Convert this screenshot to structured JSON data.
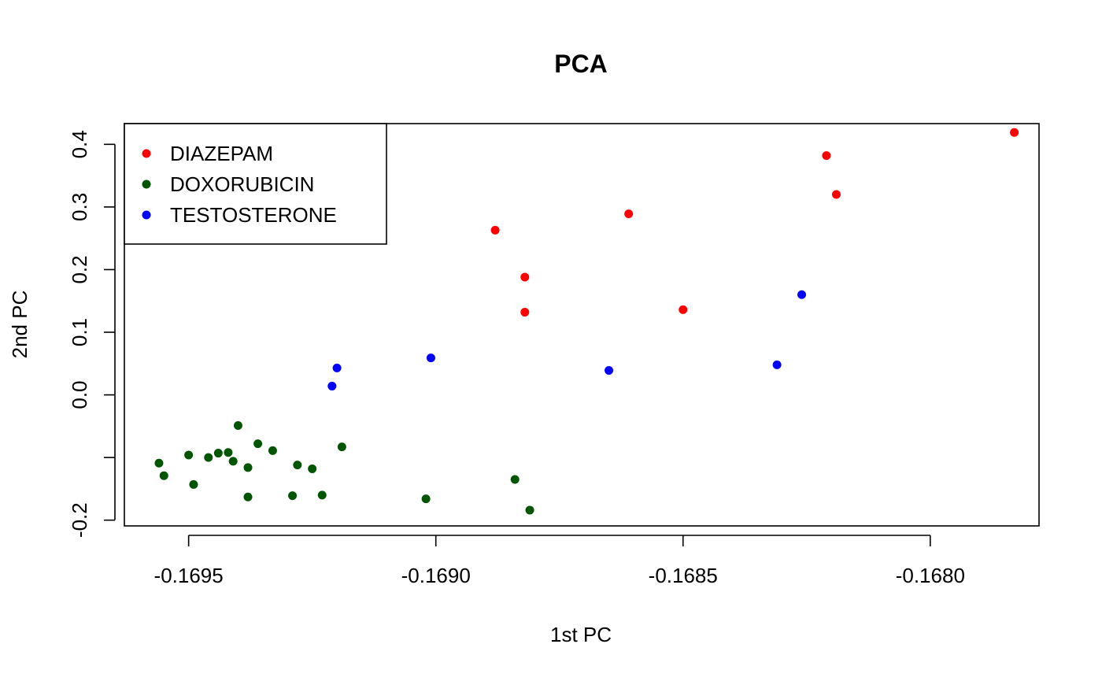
{
  "chart_data": {
    "type": "scatter",
    "title": "PCA",
    "xlabel": "1st PC",
    "ylabel": "2nd PC",
    "xlim": [
      -0.16963,
      -0.16778
    ],
    "ylim": [
      -0.2092,
      0.4331
    ],
    "x_ticks": [
      -0.1695,
      -0.169,
      -0.1685,
      -0.168
    ],
    "x_tick_labels": [
      "-0.1695",
      "-0.1690",
      "-0.1685",
      "-0.1680"
    ],
    "y_ticks": [
      -0.2,
      -0.1,
      0.0,
      0.1,
      0.2,
      0.3,
      0.4
    ],
    "y_tick_labels": [
      "-0.2",
      "",
      "0.0",
      "0.1",
      "0.2",
      "0.3",
      "0.4"
    ],
    "grid": false,
    "legend_position": "top-left",
    "series": [
      {
        "name": "DIAZEPAM",
        "color": "#ff0000",
        "points": [
          [
            -0.16888,
            0.263
          ],
          [
            -0.16882,
            0.188
          ],
          [
            -0.16882,
            0.132
          ],
          [
            -0.16861,
            0.289
          ],
          [
            -0.1685,
            0.136
          ],
          [
            -0.16821,
            0.382
          ],
          [
            -0.16819,
            0.32
          ],
          [
            -0.16783,
            0.419
          ]
        ]
      },
      {
        "name": "DOXORUBICIN",
        "color": "#005500",
        "points": [
          [
            -0.16956,
            -0.109
          ],
          [
            -0.16955,
            -0.129
          ],
          [
            -0.1695,
            -0.096
          ],
          [
            -0.16949,
            -0.143
          ],
          [
            -0.16946,
            -0.1
          ],
          [
            -0.16944,
            -0.093
          ],
          [
            -0.16942,
            -0.092
          ],
          [
            -0.16941,
            -0.106
          ],
          [
            -0.1694,
            -0.049
          ],
          [
            -0.16938,
            -0.116
          ],
          [
            -0.16938,
            -0.163
          ],
          [
            -0.16936,
            -0.078
          ],
          [
            -0.16933,
            -0.089
          ],
          [
            -0.16929,
            -0.161
          ],
          [
            -0.16928,
            -0.112
          ],
          [
            -0.16925,
            -0.118
          ],
          [
            -0.16923,
            -0.16
          ],
          [
            -0.16919,
            -0.083
          ],
          [
            -0.16902,
            -0.166
          ],
          [
            -0.16884,
            -0.135
          ],
          [
            -0.16881,
            -0.184
          ]
        ]
      },
      {
        "name": "TESTOSTERONE",
        "color": "#0000ff",
        "points": [
          [
            -0.16921,
            0.014
          ],
          [
            -0.1692,
            0.043
          ],
          [
            -0.16901,
            0.059
          ],
          [
            -0.16865,
            0.039
          ],
          [
            -0.16831,
            0.048
          ],
          [
            -0.16826,
            0.16
          ]
        ]
      }
    ]
  }
}
